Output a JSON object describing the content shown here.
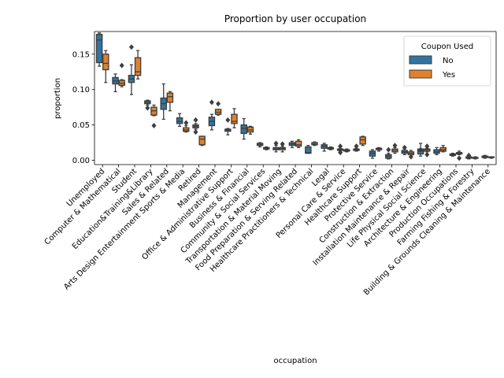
{
  "chart_data": {
    "type": "box",
    "title": "Proportion by user occupation",
    "xlabel": "occupation",
    "ylabel": "proportion",
    "ylim": [
      -0.006,
      0.182
    ],
    "yticks": [
      0.0,
      0.05,
      0.1,
      0.15
    ],
    "ytick_labels": [
      "0.00",
      "0.05",
      "0.10",
      "0.15"
    ],
    "grid": false,
    "legend": {
      "title": "Coupon Used",
      "placement": "top-right"
    },
    "series": [
      {
        "name": "No",
        "color": "#3274a1"
      },
      {
        "name": "Yes",
        "color": "#e1812c"
      }
    ],
    "categories": [
      "Unemployed",
      "Computer & Mathematical",
      "Student",
      "Education&Training&Library",
      "Sales & Related",
      "Arts Design Entertainment Sports & Media",
      "Retired",
      "Management",
      "Office & Administrative Support",
      "Business & Financial",
      "Community & Social Services",
      "Transportation & Material Moving",
      "Food Preparation & Serving Related",
      "Healthcare Practitioners & Technical",
      "Legal",
      "Personal Care & Service",
      "Healthcare Support",
      "Protective Service",
      "Construction & Extraction",
      "Installation Maintenance & Repair",
      "Life Physical Social Science",
      "Architecture & Engineering",
      "Production Occupations",
      "Farming Fishing & Forestry",
      "Building & Grounds Cleaning & Maintenance"
    ],
    "boxes": {
      "No": [
        {
          "wl": 0.133,
          "q1": 0.138,
          "med": 0.17,
          "q3": 0.178,
          "wh": 0.18,
          "out": []
        },
        {
          "wl": 0.097,
          "q1": 0.108,
          "med": 0.112,
          "q3": 0.117,
          "wh": 0.122,
          "out": []
        },
        {
          "wl": 0.093,
          "q1": 0.11,
          "med": 0.115,
          "q3": 0.12,
          "wh": 0.135,
          "out": [
            0.16
          ]
        },
        {
          "wl": 0.078,
          "q1": 0.08,
          "med": 0.082,
          "q3": 0.084,
          "wh": 0.085,
          "out": [
            0.074
          ]
        },
        {
          "wl": 0.058,
          "q1": 0.072,
          "med": 0.08,
          "q3": 0.088,
          "wh": 0.108,
          "out": []
        },
        {
          "wl": 0.048,
          "q1": 0.052,
          "med": 0.055,
          "q3": 0.06,
          "wh": 0.066,
          "out": []
        },
        {
          "wl": 0.044,
          "q1": 0.046,
          "med": 0.048,
          "q3": 0.05,
          "wh": 0.052,
          "out": [
            0.057,
            0.04
          ]
        },
        {
          "wl": 0.043,
          "q1": 0.049,
          "med": 0.055,
          "q3": 0.061,
          "wh": 0.065,
          "out": [
            0.082
          ]
        },
        {
          "wl": 0.036,
          "q1": 0.041,
          "med": 0.043,
          "q3": 0.044,
          "wh": 0.045,
          "out": [
            0.057
          ]
        },
        {
          "wl": 0.03,
          "q1": 0.038,
          "med": 0.045,
          "q3": 0.05,
          "wh": 0.059,
          "out": []
        },
        {
          "wl": 0.019,
          "q1": 0.021,
          "med": 0.022,
          "q3": 0.024,
          "wh": 0.025,
          "out": []
        },
        {
          "wl": 0.012,
          "q1": 0.015,
          "med": 0.016,
          "q3": 0.018,
          "wh": 0.021,
          "out": [
            0.024
          ]
        },
        {
          "wl": 0.018,
          "q1": 0.021,
          "med": 0.023,
          "q3": 0.025,
          "wh": 0.027,
          "out": []
        },
        {
          "wl": 0.01,
          "q1": 0.01,
          "med": 0.011,
          "q3": 0.019,
          "wh": 0.021,
          "out": []
        },
        {
          "wl": 0.013,
          "q1": 0.017,
          "med": 0.02,
          "q3": 0.022,
          "wh": 0.024,
          "out": []
        },
        {
          "wl": 0.013,
          "q1": 0.014,
          "med": 0.015,
          "q3": 0.016,
          "wh": 0.017,
          "out": [
            0.011,
            0.02
          ]
        },
        {
          "wl": 0.013,
          "q1": 0.014,
          "med": 0.015,
          "q3": 0.016,
          "wh": 0.017,
          "out": [
            0.02
          ]
        },
        {
          "wl": 0.003,
          "q1": 0.006,
          "med": 0.01,
          "q3": 0.013,
          "wh": 0.015,
          "out": []
        },
        {
          "wl": 0.002,
          "q1": 0.003,
          "med": 0.006,
          "q3": 0.008,
          "wh": 0.01,
          "out": [
            0.015
          ]
        },
        {
          "wl": 0.008,
          "q1": 0.01,
          "med": 0.012,
          "q3": 0.014,
          "wh": 0.016,
          "out": [
            0.018
          ]
        },
        {
          "wl": 0.006,
          "q1": 0.009,
          "med": 0.013,
          "q3": 0.016,
          "wh": 0.024,
          "out": [
            0.015
          ]
        },
        {
          "wl": 0.008,
          "q1": 0.01,
          "med": 0.012,
          "q3": 0.015,
          "wh": 0.018,
          "out": []
        },
        {
          "wl": 0.006,
          "q1": 0.007,
          "med": 0.008,
          "q3": 0.009,
          "wh": 0.01,
          "out": []
        },
        {
          "wl": 0.002,
          "q1": 0.003,
          "med": 0.004,
          "q3": 0.005,
          "wh": 0.006,
          "out": [
            0.007
          ]
        },
        {
          "wl": 0.003,
          "q1": 0.004,
          "med": 0.005,
          "q3": 0.006,
          "wh": 0.007,
          "out": []
        }
      ],
      "Yes": [
        {
          "wl": 0.11,
          "q1": 0.128,
          "med": 0.137,
          "q3": 0.15,
          "wh": 0.155,
          "out": []
        },
        {
          "wl": 0.104,
          "q1": 0.106,
          "med": 0.109,
          "q3": 0.113,
          "wh": 0.114,
          "out": [
            0.134
          ]
        },
        {
          "wl": 0.115,
          "q1": 0.12,
          "med": 0.125,
          "q3": 0.145,
          "wh": 0.155,
          "out": []
        },
        {
          "wl": 0.063,
          "q1": 0.064,
          "med": 0.07,
          "q3": 0.075,
          "wh": 0.078,
          "out": [
            0.049
          ]
        },
        {
          "wl": 0.07,
          "q1": 0.082,
          "med": 0.09,
          "q3": 0.095,
          "wh": 0.097,
          "out": []
        },
        {
          "wl": 0.04,
          "q1": 0.041,
          "med": 0.043,
          "q3": 0.046,
          "wh": 0.049,
          "out": [
            0.053
          ]
        },
        {
          "wl": 0.021,
          "q1": 0.022,
          "med": 0.03,
          "q3": 0.034,
          "wh": 0.034,
          "out": []
        },
        {
          "wl": 0.064,
          "q1": 0.065,
          "med": 0.068,
          "q3": 0.072,
          "wh": 0.072,
          "out": [
            0.08
          ]
        },
        {
          "wl": 0.046,
          "q1": 0.052,
          "med": 0.055,
          "q3": 0.065,
          "wh": 0.073,
          "out": []
        },
        {
          "wl": 0.037,
          "q1": 0.04,
          "med": 0.043,
          "q3": 0.047,
          "wh": 0.048,
          "out": []
        },
        {
          "wl": 0.015,
          "q1": 0.016,
          "med": 0.017,
          "q3": 0.018,
          "wh": 0.019,
          "out": []
        },
        {
          "wl": 0.012,
          "q1": 0.015,
          "med": 0.017,
          "q3": 0.018,
          "wh": 0.02,
          "out": [
            0.023
          ]
        },
        {
          "wl": 0.018,
          "q1": 0.02,
          "med": 0.022,
          "q3": 0.027,
          "wh": 0.029,
          "out": []
        },
        {
          "wl": 0.021,
          "q1": 0.022,
          "med": 0.023,
          "q3": 0.025,
          "wh": 0.026,
          "out": []
        },
        {
          "wl": 0.015,
          "q1": 0.016,
          "med": 0.017,
          "q3": 0.018,
          "wh": 0.019,
          "out": []
        },
        {
          "wl": 0.012,
          "q1": 0.013,
          "med": 0.014,
          "q3": 0.015,
          "wh": 0.016,
          "out": []
        },
        {
          "wl": 0.021,
          "q1": 0.023,
          "med": 0.029,
          "q3": 0.033,
          "wh": 0.034,
          "out": []
        },
        {
          "wl": 0.013,
          "q1": 0.015,
          "med": 0.016,
          "q3": 0.017,
          "wh": 0.018,
          "out": []
        },
        {
          "wl": 0.01,
          "q1": 0.012,
          "med": 0.014,
          "q3": 0.016,
          "wh": 0.018,
          "out": [
            0.021
          ]
        },
        {
          "wl": 0.006,
          "q1": 0.008,
          "med": 0.01,
          "q3": 0.012,
          "wh": 0.014,
          "out": [
            0.005
          ]
        },
        {
          "wl": 0.012,
          "q1": 0.013,
          "med": 0.015,
          "q3": 0.016,
          "wh": 0.017,
          "out": [
            0.008,
            0.02
          ]
        },
        {
          "wl": 0.012,
          "q1": 0.013,
          "med": 0.015,
          "q3": 0.018,
          "wh": 0.021,
          "out": []
        },
        {
          "wl": 0.008,
          "q1": 0.009,
          "med": 0.01,
          "q3": 0.011,
          "wh": 0.013,
          "out": [
            0.003
          ]
        },
        {
          "wl": 0.002,
          "q1": 0.003,
          "med": 0.004,
          "q3": 0.004,
          "wh": 0.005,
          "out": []
        },
        {
          "wl": 0.003,
          "q1": 0.004,
          "med": 0.004,
          "q3": 0.005,
          "wh": 0.005,
          "out": []
        }
      ]
    }
  }
}
